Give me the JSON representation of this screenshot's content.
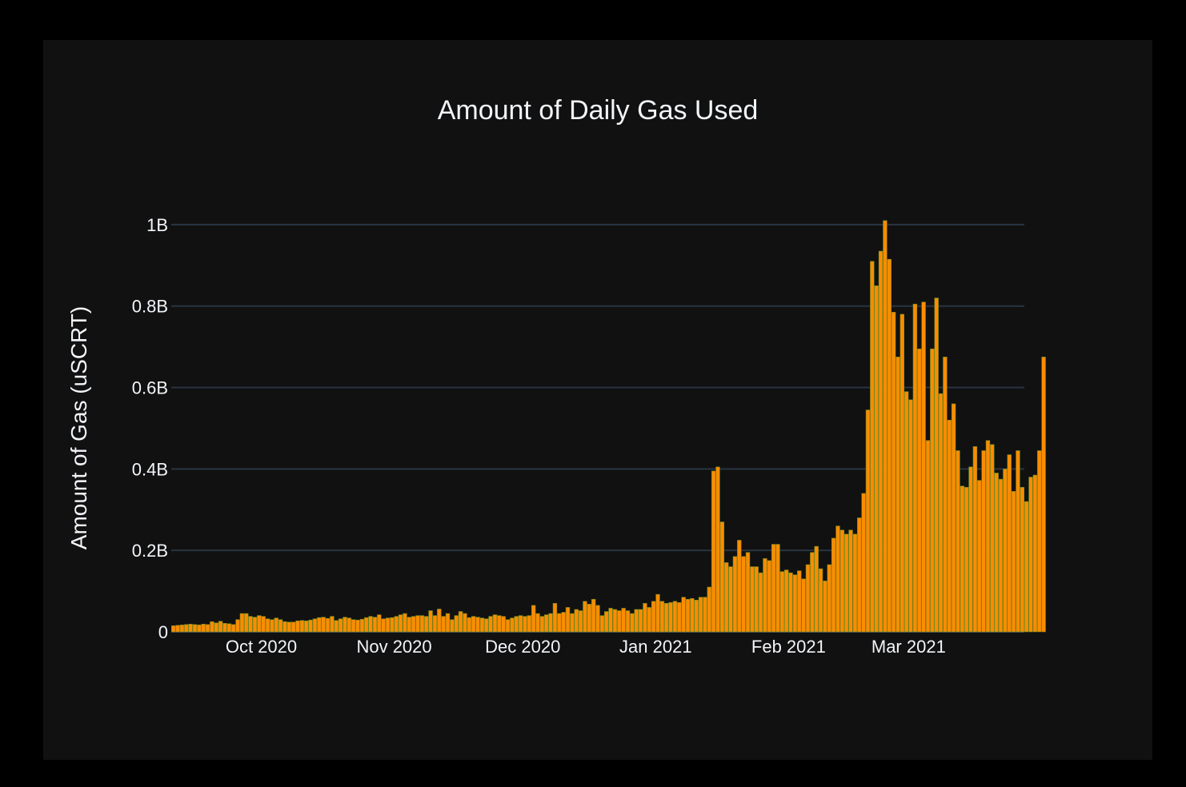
{
  "chart_data": {
    "type": "bar",
    "title": "Amount of Daily Gas Used",
    "xlabel": "",
    "ylabel": "Amount of Gas (uSCRT)",
    "x_start": "2020-09-10",
    "x_end": "2021-03-27",
    "ylim": [
      0,
      1100000000
    ],
    "y_ticks": [
      {
        "value": 0,
        "label": "0"
      },
      {
        "value": 200000000,
        "label": "0.2B"
      },
      {
        "value": 400000000,
        "label": "0.4B"
      },
      {
        "value": 600000000,
        "label": "0.6B"
      },
      {
        "value": 800000000,
        "label": "0.8B"
      },
      {
        "value": 1000000000,
        "label": "1B"
      }
    ],
    "x_ticks": [
      {
        "date": "2020-10-01",
        "label": "Oct 2020"
      },
      {
        "date": "2020-11-01",
        "label": "Nov 2020"
      },
      {
        "date": "2020-12-01",
        "label": "Dec 2020"
      },
      {
        "date": "2021-01-01",
        "label": "Jan 2021"
      },
      {
        "date": "2021-02-01",
        "label": "Feb 2021"
      },
      {
        "date": "2021-03-01",
        "label": "Mar 2021"
      }
    ],
    "grid": true,
    "legend": "none",
    "colors": {
      "bar_fill": "#ff8c00",
      "bar_edge": "#6b8e23",
      "background": "#111111",
      "grid": "#283442",
      "text": "#f2f5fa"
    },
    "series": [
      {
        "values": [
          15000000,
          16000000,
          17000000,
          18000000,
          19000000,
          18000000,
          17000000,
          19000000,
          18000000,
          25000000,
          22000000,
          26000000,
          21000000,
          20000000,
          18000000,
          30000000,
          45000000,
          45000000,
          38000000,
          36000000,
          40000000,
          38000000,
          32000000,
          30000000,
          34000000,
          30000000,
          25000000,
          24000000,
          24000000,
          27000000,
          28000000,
          27000000,
          29000000,
          32000000,
          35000000,
          36000000,
          33000000,
          38000000,
          28000000,
          32000000,
          36000000,
          34000000,
          30000000,
          29000000,
          31000000,
          35000000,
          38000000,
          36000000,
          42000000,
          32000000,
          34000000,
          35000000,
          38000000,
          42000000,
          45000000,
          36000000,
          38000000,
          40000000,
          40000000,
          38000000,
          52000000,
          40000000,
          56000000,
          38000000,
          45000000,
          30000000,
          40000000,
          50000000,
          45000000,
          35000000,
          38000000,
          36000000,
          34000000,
          32000000,
          38000000,
          42000000,
          40000000,
          38000000,
          30000000,
          34000000,
          38000000,
          40000000,
          38000000,
          40000000,
          65000000,
          45000000,
          38000000,
          42000000,
          45000000,
          70000000,
          45000000,
          48000000,
          60000000,
          45000000,
          55000000,
          52000000,
          75000000,
          68000000,
          80000000,
          65000000,
          40000000,
          50000000,
          58000000,
          55000000,
          52000000,
          58000000,
          52000000,
          45000000,
          55000000,
          55000000,
          70000000,
          60000000,
          75000000,
          92000000,
          75000000,
          70000000,
          72000000,
          75000000,
          72000000,
          85000000,
          80000000,
          82000000,
          78000000,
          85000000,
          85000000,
          110000000,
          395000000,
          405000000,
          270000000,
          170000000,
          160000000,
          185000000,
          225000000,
          185000000,
          195000000,
          160000000,
          160000000,
          145000000,
          180000000,
          175000000,
          215000000,
          215000000,
          148000000,
          152000000,
          145000000,
          140000000,
          150000000,
          130000000,
          165000000,
          195000000,
          210000000,
          155000000,
          125000000,
          165000000,
          230000000,
          260000000,
          250000000,
          240000000,
          250000000,
          240000000,
          280000000,
          340000000,
          545000000,
          910000000,
          850000000,
          935000000,
          1010000000,
          915000000,
          785000000,
          675000000,
          780000000,
          590000000,
          570000000,
          805000000,
          695000000,
          810000000,
          470000000,
          695000000,
          820000000,
          585000000,
          675000000,
          520000000,
          560000000,
          445000000,
          358000000,
          355000000,
          405000000,
          455000000,
          372000000,
          445000000,
          470000000,
          460000000,
          390000000,
          375000000,
          400000000,
          435000000,
          345000000,
          445000000,
          355000000,
          320000000,
          380000000,
          385000000,
          445000000,
          675000000
        ]
      }
    ]
  }
}
